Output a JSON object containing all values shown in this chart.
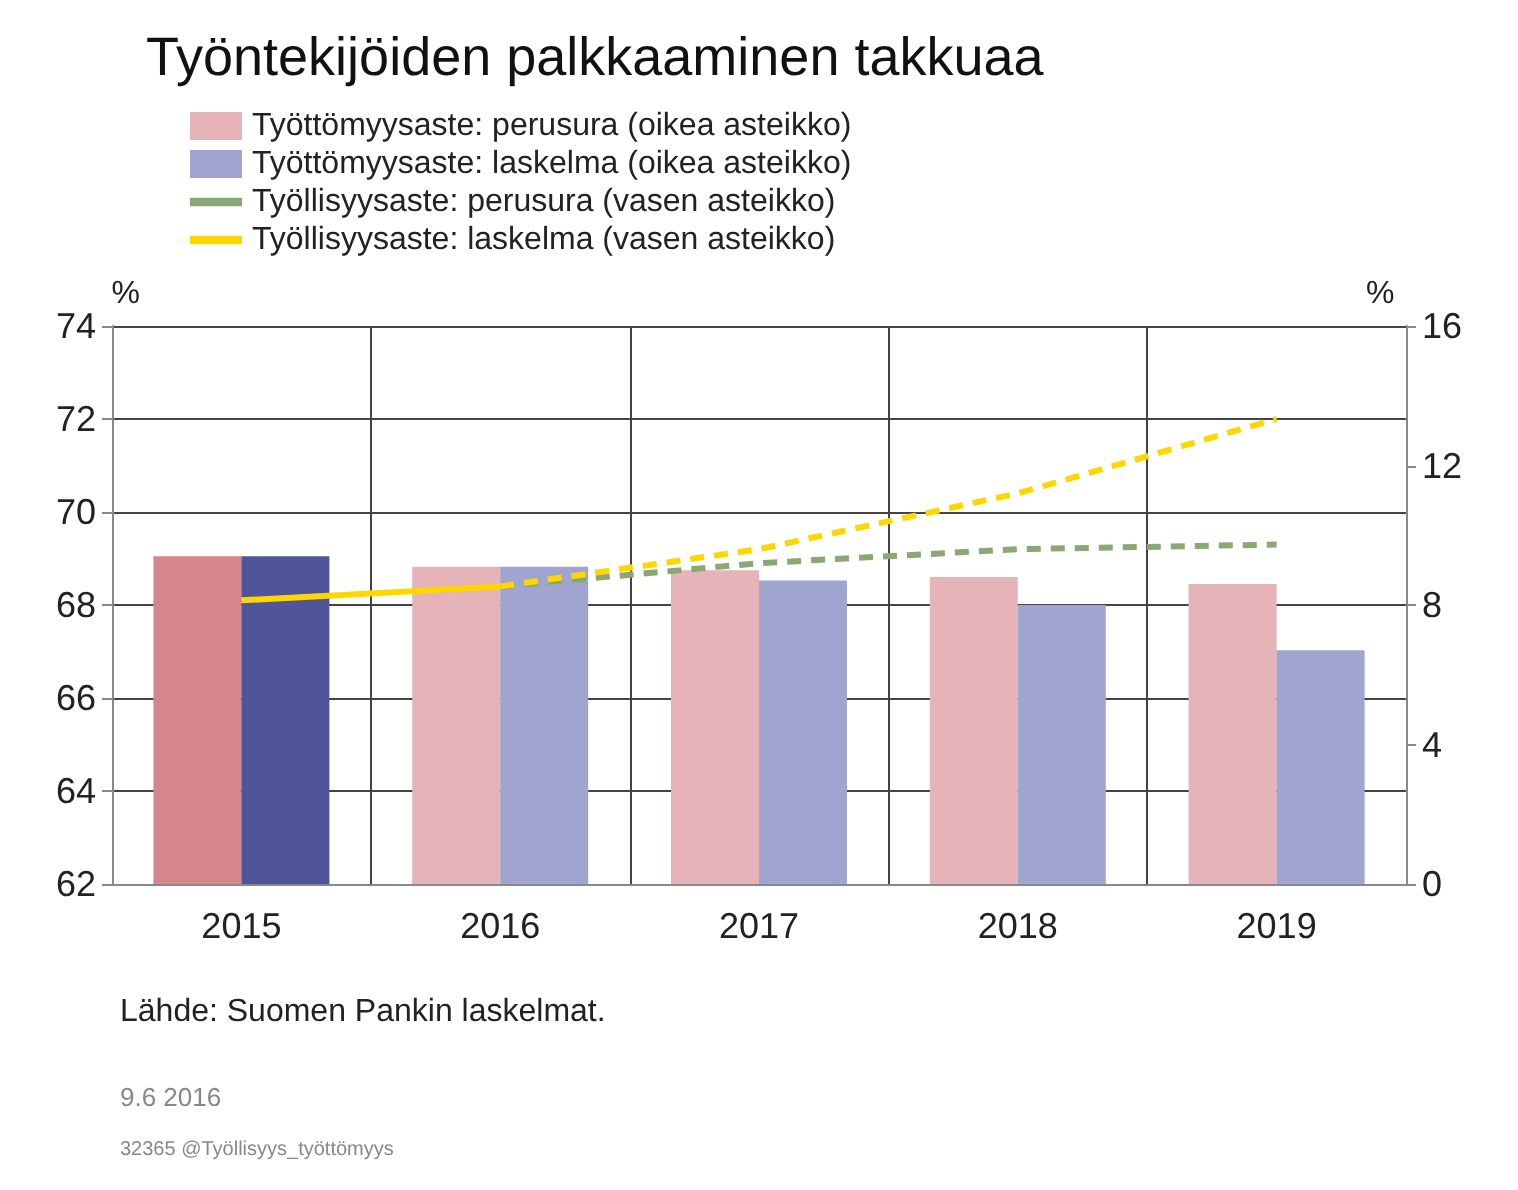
{
  "chart_data": {
    "type": "bar",
    "title": "Työntekijöiden palkkaaminen takkuaa",
    "categories": [
      "2015",
      "2016",
      "2017",
      "2018",
      "2019"
    ],
    "series": [
      {
        "name": "Työttömyysaste: perusura (oikea asteikko)",
        "axis": "y2",
        "color": "#e6b3b8",
        "colors": [
          "#d4868a",
          "#e6b3b8",
          "#e6b3b8",
          "#e6b3b8",
          "#e6b3b8"
        ],
        "values": [
          9.4,
          9.1,
          9.0,
          8.8,
          8.6
        ]
      },
      {
        "name": "Työttömyysaste: laskelma (oikea asteikko)",
        "axis": "y2",
        "color": "#a0a5d0",
        "colors": [
          "#505498",
          "#a0a5d0",
          "#a0a5d0",
          "#a0a5d0",
          "#a0a5d0"
        ],
        "values": [
          9.4,
          9.1,
          8.7,
          8.0,
          6.7
        ]
      },
      {
        "name": "Työllisyysaste: perusura (vasen asteikko)",
        "type": "line",
        "line_style": "dashed",
        "color": "#8aa876",
        "values": [
          null,
          68.4,
          68.9,
          69.2,
          69.3
        ]
      },
      {
        "name": "Työllisyysaste: laskelma (vasen asteikko)",
        "type": "line",
        "line_style": "dashed",
        "color": "#ffd700",
        "values": [
          null,
          68.4,
          69.2,
          70.4,
          72.0
        ]
      },
      {
        "type": "line",
        "line_style": "solid",
        "color": "#ffd700",
        "values": [
          68.1,
          68.4,
          null,
          null,
          null
        ]
      }
    ],
    "ylabel": "%",
    "y2label": "%",
    "ylim": [
      62,
      74
    ],
    "yticks": [
      62,
      64,
      66,
      68,
      70,
      72,
      74
    ],
    "y2lim": [
      0,
      16
    ],
    "y2ticks": [
      0,
      4,
      8,
      12,
      16
    ],
    "grid": true,
    "legend": "top left",
    "marker": "none",
    "annotations": [
      "Lähde: Suomen Pankin laskelmat.",
      "9.6 2016",
      "32365 @Työllisyys_työttömyys"
    ]
  }
}
